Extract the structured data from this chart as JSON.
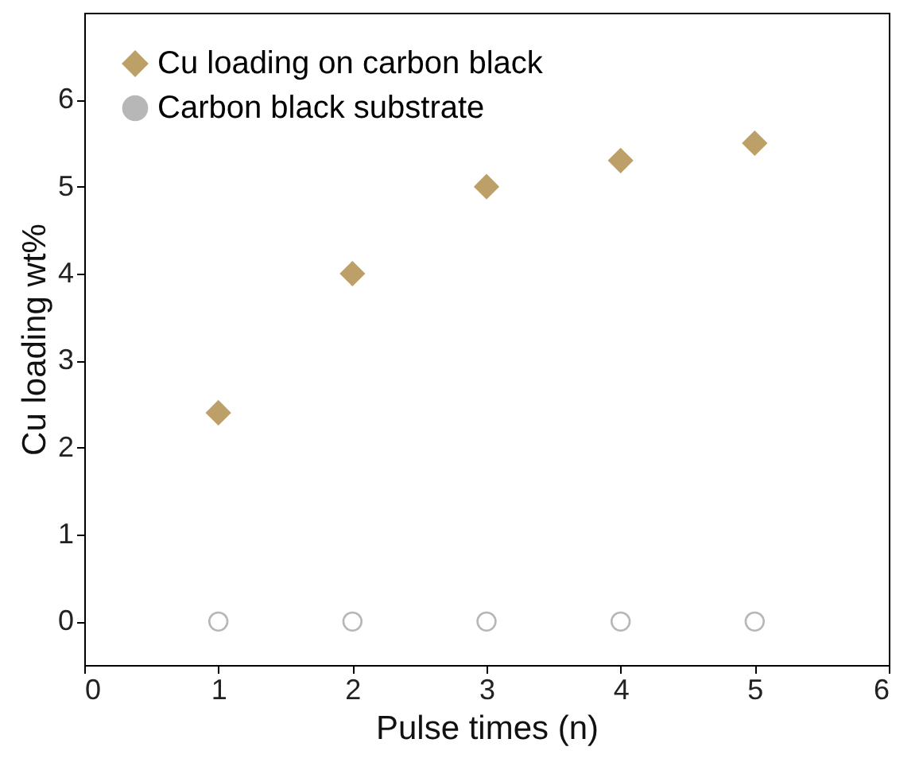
{
  "chart_data": {
    "type": "scatter",
    "xlabel": "Pulse times (n)",
    "ylabel": "Cu loading wt%",
    "x": [
      1,
      2,
      3,
      4,
      5
    ],
    "series": [
      {
        "name": "Cu loading on carbon black",
        "color": "#a07828",
        "marker": "diamond",
        "values": [
          2.4,
          4.0,
          5.0,
          5.3,
          5.5
        ]
      },
      {
        "name": "Carbon black substrate",
        "color": "#999999",
        "marker": "circle",
        "values": [
          0,
          0,
          0,
          0,
          0
        ]
      }
    ],
    "xlim": [
      0,
      6
    ],
    "xticks": [
      0,
      1,
      2,
      3,
      4,
      5,
      6
    ],
    "ylim": [
      -0.5,
      7
    ],
    "yticks": [
      0,
      1,
      2,
      3,
      4,
      5,
      6
    ],
    "legend": "top left",
    "grid": false
  }
}
